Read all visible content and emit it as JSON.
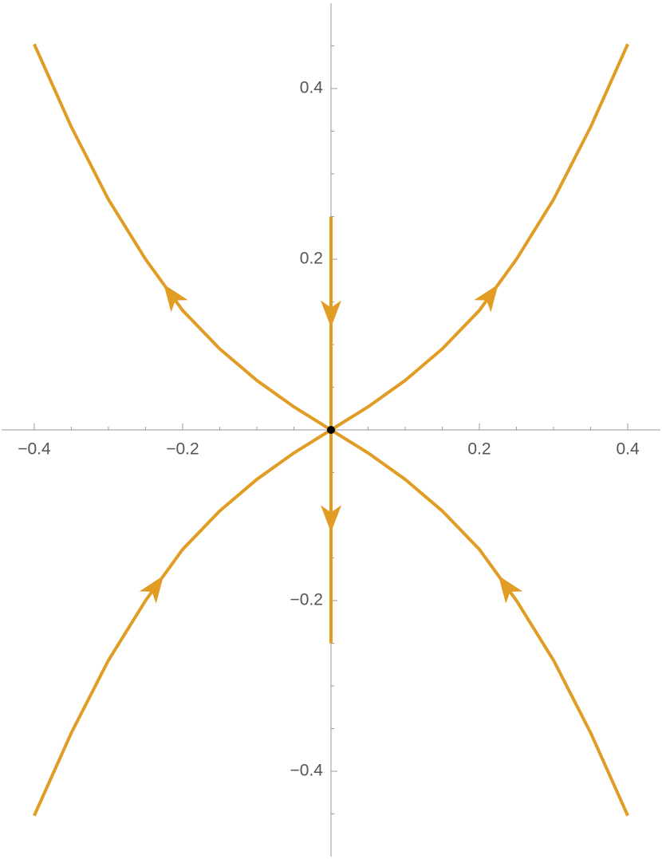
{
  "chart_data": {
    "type": "line",
    "xlim": [
      -0.444,
      0.444
    ],
    "ylim": [
      -0.5,
      0.5
    ],
    "xticks": [
      {
        "value": -0.4,
        "label": "−0.4"
      },
      {
        "value": -0.2,
        "label": "−0.2"
      },
      0.2,
      0.4
    ],
    "yticks": [
      {
        "value": -0.4,
        "label": "−0.4"
      },
      {
        "value": -0.2,
        "label": "−0.2"
      },
      0.2,
      0.4
    ],
    "xminorticks": [
      -0.35,
      -0.3,
      -0.25,
      -0.15,
      -0.1,
      -0.05,
      0.05,
      0.1,
      0.15,
      0.25,
      0.3,
      0.35
    ],
    "yminorticks": [
      -0.45,
      -0.35,
      -0.3,
      -0.25,
      -0.15,
      -0.1,
      -0.05,
      0.05,
      0.1,
      0.15,
      0.25,
      0.3,
      0.35,
      0.45
    ],
    "series": [
      {
        "color": "#e19c24",
        "x": [
          0,
          0.05,
          0.1,
          0.15,
          0.2,
          0.25,
          0.3,
          0.35,
          0.4
        ],
        "values": [
          0,
          0.027,
          0.058,
          0.095,
          0.14,
          0.2,
          0.27,
          0.355,
          0.452
        ]
      },
      {
        "color": "#e19c24",
        "x": [
          0,
          -0.05,
          -0.1,
          -0.15,
          -0.2,
          -0.25,
          -0.3,
          -0.35,
          -0.4
        ],
        "values": [
          0,
          0.027,
          0.058,
          0.095,
          0.14,
          0.2,
          0.27,
          0.355,
          0.452
        ]
      },
      {
        "color": "#e19c24",
        "x": [
          -0.4,
          -0.35,
          -0.3,
          -0.25,
          -0.2,
          -0.15,
          -0.1,
          -0.05,
          0
        ],
        "values": [
          -0.452,
          -0.355,
          -0.27,
          -0.2,
          -0.14,
          -0.095,
          -0.058,
          -0.027,
          0
        ]
      },
      {
        "color": "#e19c24",
        "x": [
          0.4,
          0.35,
          0.3,
          0.25,
          0.2,
          0.15,
          0.1,
          0.05,
          0
        ],
        "values": [
          -0.452,
          -0.355,
          -0.27,
          -0.2,
          -0.14,
          -0.095,
          -0.058,
          -0.027,
          0
        ]
      },
      {
        "color": "#e19c24",
        "x": [
          0,
          0
        ],
        "values": [
          0.25,
          -0.25
        ]
      }
    ],
    "points": {
      "color": "#000000",
      "x": [
        0
      ],
      "values": [
        0
      ]
    }
  }
}
